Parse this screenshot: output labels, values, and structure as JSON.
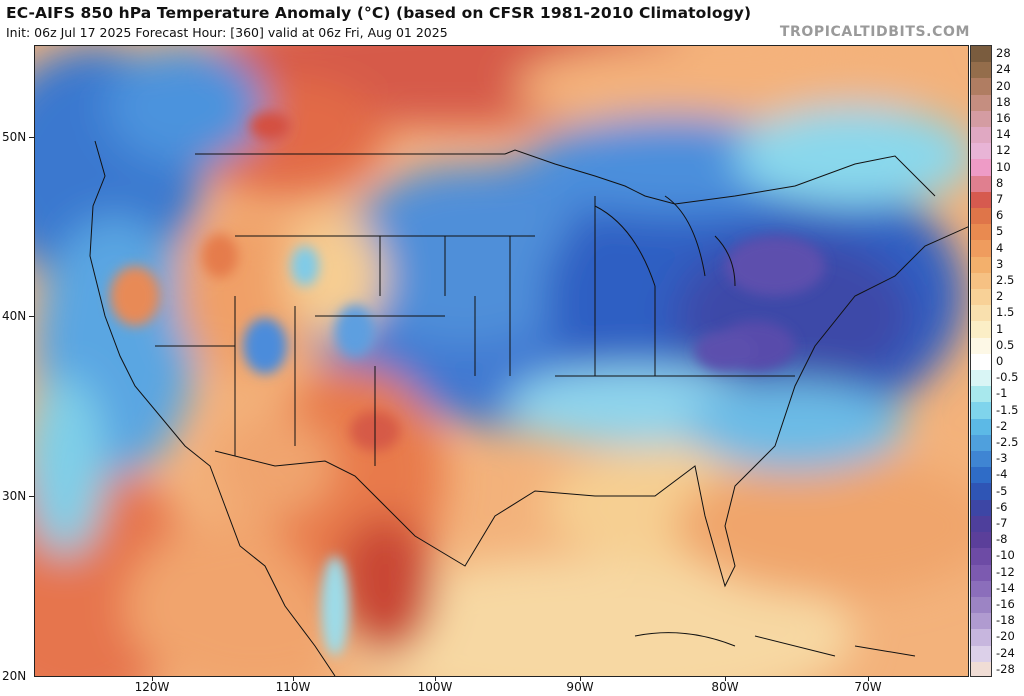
{
  "header": {
    "title": "EC-AIFS 850 hPa Temperature Anomaly (°C) (based on CFSR 1981-2010 Climatology)",
    "subtitle": "Init: 06z Jul 17 2025   Forecast Hour: [360]   valid at 06z Fri, Aug 01 2025",
    "brand": "TROPICALTIDBITS.COM"
  },
  "map": {
    "region": "Continental United States",
    "lat_labels": [
      "50N",
      "40N",
      "30N",
      "20N"
    ],
    "lon_labels": [
      "120W",
      "110W",
      "100W",
      "90W",
      "80W",
      "70W"
    ]
  },
  "colorbar": {
    "labels": [
      "28",
      "24",
      "20",
      "18",
      "16",
      "14",
      "12",
      "10",
      "8",
      "7",
      "6",
      "5",
      "4",
      "3",
      "2.5",
      "2",
      "1.5",
      "1",
      "0.5",
      "0",
      "-0.5",
      "-1",
      "-1.5",
      "-2",
      "-2.5",
      "-3",
      "-4",
      "-5",
      "-6",
      "-7",
      "-8",
      "-10",
      "-12",
      "-14",
      "-16",
      "-18",
      "-20",
      "-24",
      "-28"
    ],
    "colors": [
      "#7a5c3e",
      "#946d4b",
      "#b07d62",
      "#c58e80",
      "#d49ca2",
      "#e0a8c2",
      "#e8b4d6",
      "#ee9bc6",
      "#e07f8f",
      "#d65a4f",
      "#df7549",
      "#e98a50",
      "#ef9c5e",
      "#f3b06c",
      "#f6c183",
      "#f8d197",
      "#f9e0ae",
      "#fbeec6",
      "#fdf8e6",
      "#ffffff",
      "#d9f5f5",
      "#a8e8ed",
      "#7fd4ec",
      "#5cb9e6",
      "#4fa0dd",
      "#3f85d3",
      "#2f6cc7",
      "#2f55b5",
      "#3d46a5",
      "#4e3f9c",
      "#5b3f9a",
      "#6d4ba5",
      "#7c5ab0",
      "#8b6ebb",
      "#9c84c4",
      "#b09bd0",
      "#c7b6de",
      "#dcd0e9",
      "#f0ddd5"
    ]
  }
}
